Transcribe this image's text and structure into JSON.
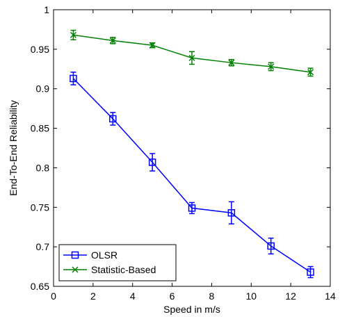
{
  "chart_data": {
    "type": "line",
    "title": "",
    "xlabel": "Speed in m/s",
    "ylabel": "End-To-End Reliability",
    "xlim": [
      0,
      14
    ],
    "ylim": [
      0.65,
      1
    ],
    "xticks": [
      0,
      2,
      4,
      6,
      8,
      10,
      12,
      14
    ],
    "yticks": [
      0.65,
      0.7,
      0.75,
      0.8,
      0.85,
      0.9,
      0.95,
      1
    ],
    "ytick_labels": [
      "0.65",
      "0.7",
      "0.75",
      "0.8",
      "0.85",
      "0.9",
      "0.95",
      "1"
    ],
    "grid": false,
    "legend": "bottom-left",
    "x": [
      1,
      3,
      5,
      7,
      9,
      11,
      13
    ],
    "series": [
      {
        "name": "OLSR",
        "color": "#0000ff",
        "marker": "square",
        "values": [
          0.913,
          0.862,
          0.807,
          0.749,
          0.743,
          0.701,
          0.668
        ],
        "errors": [
          0.008,
          0.008,
          0.011,
          0.007,
          0.014,
          0.01,
          0.007
        ]
      },
      {
        "name": "Statistic-Based",
        "color": "#008000",
        "marker": "x",
        "values": [
          0.968,
          0.961,
          0.955,
          0.939,
          0.933,
          0.928,
          0.921
        ],
        "errors": [
          0.006,
          0.004,
          0.003,
          0.008,
          0.004,
          0.005,
          0.005
        ]
      }
    ]
  }
}
